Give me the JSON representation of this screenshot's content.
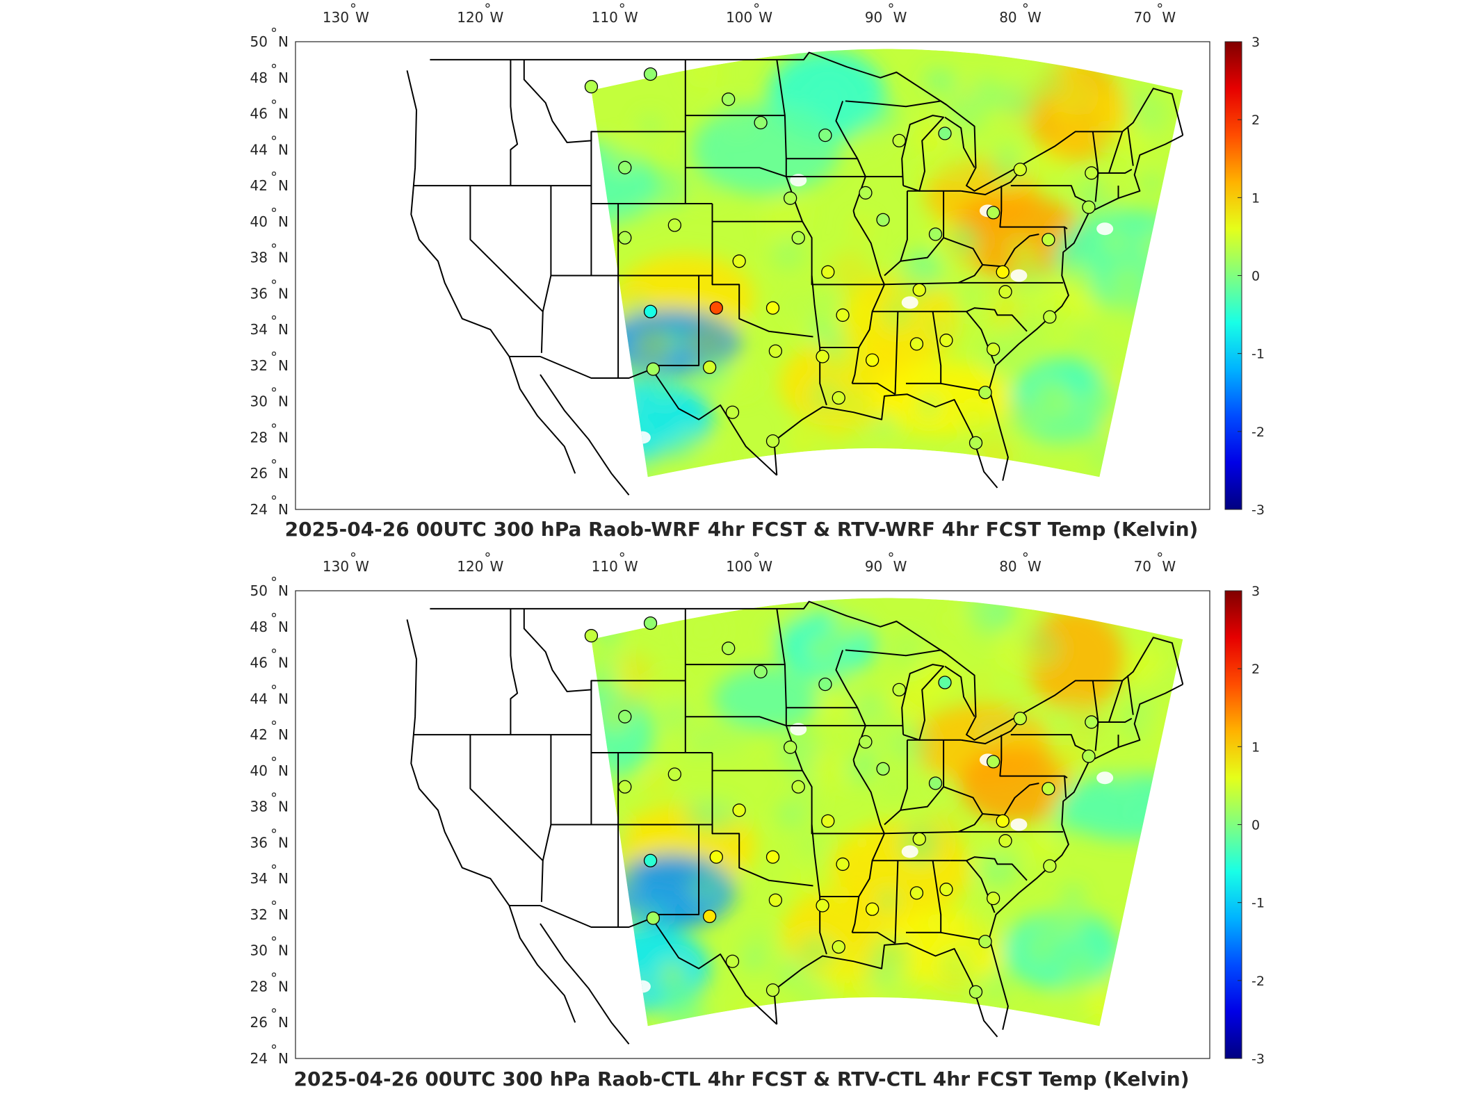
{
  "chart_data": [
    {
      "type": "heatmap",
      "title": "2025-04-26 00UTC 300 hPa Raob-WRF 4hr FCST & RTV-WRF 4hr FCST Temp (Kelvin)",
      "x_ticks": [
        {
          "deg": "130",
          "hemi": "W",
          "value": -130
        },
        {
          "deg": "120",
          "hemi": "W",
          "value": -120
        },
        {
          "deg": "110",
          "hemi": "W",
          "value": -110
        },
        {
          "deg": "100",
          "hemi": "W",
          "value": -100
        },
        {
          "deg": "90",
          "hemi": "W",
          "value": -90
        },
        {
          "deg": "80",
          "hemi": "W",
          "value": -80
        },
        {
          "deg": "70",
          "hemi": "W",
          "value": -70
        }
      ],
      "y_ticks": [
        {
          "deg": "50",
          "hemi": "N",
          "value": 50
        },
        {
          "deg": "48",
          "hemi": "N",
          "value": 48
        },
        {
          "deg": "46",
          "hemi": "N",
          "value": 46
        },
        {
          "deg": "44",
          "hemi": "N",
          "value": 44
        },
        {
          "deg": "42",
          "hemi": "N",
          "value": 42
        },
        {
          "deg": "40",
          "hemi": "N",
          "value": 40
        },
        {
          "deg": "38",
          "hemi": "N",
          "value": 38
        },
        {
          "deg": "36",
          "hemi": "N",
          "value": 36
        },
        {
          "deg": "34",
          "hemi": "N",
          "value": 34
        },
        {
          "deg": "32",
          "hemi": "N",
          "value": 32
        },
        {
          "deg": "30",
          "hemi": "N",
          "value": 30
        },
        {
          "deg": "28",
          "hemi": "N",
          "value": 28
        },
        {
          "deg": "26",
          "hemi": "N",
          "value": 26
        },
        {
          "deg": "24",
          "hemi": "N",
          "value": 24
        }
      ],
      "colorbar": {
        "range": [
          -3,
          3
        ],
        "ticks": [
          "3",
          "2",
          "1",
          "0",
          "-1",
          "-2",
          "-3"
        ],
        "colormap": "jet"
      },
      "stations": [
        {
          "lon": -111.0,
          "lat": 47.5,
          "value": 0.3
        },
        {
          "lon": -106.6,
          "lat": 48.2,
          "value": 0.1
        },
        {
          "lon": -100.8,
          "lat": 46.8,
          "value": 0.2
        },
        {
          "lon": -98.4,
          "lat": 45.5,
          "value": 0.1
        },
        {
          "lon": -93.6,
          "lat": 44.8,
          "value": 0.0
        },
        {
          "lon": -88.1,
          "lat": 44.5,
          "value": 0.4
        },
        {
          "lon": -84.7,
          "lat": 44.9,
          "value": 0.0
        },
        {
          "lon": -108.5,
          "lat": 43.0,
          "value": 0.1
        },
        {
          "lon": -96.2,
          "lat": 41.3,
          "value": 0.3
        },
        {
          "lon": -90.6,
          "lat": 41.6,
          "value": 0.3
        },
        {
          "lon": -89.3,
          "lat": 40.1,
          "value": 0.2
        },
        {
          "lon": -81.1,
          "lat": 40.5,
          "value": 0.3
        },
        {
          "lon": -85.4,
          "lat": 39.3,
          "value": 0.2
        },
        {
          "lon": -79.1,
          "lat": 42.9,
          "value": 0.5
        },
        {
          "lon": -73.8,
          "lat": 42.7,
          "value": 0.4
        },
        {
          "lon": -74.0,
          "lat": 40.8,
          "value": 0.3
        },
        {
          "lon": -77.0,
          "lat": 39.0,
          "value": 0.4
        },
        {
          "lon": -108.5,
          "lat": 39.1,
          "value": 0.3
        },
        {
          "lon": -104.8,
          "lat": 39.8,
          "value": 0.4
        },
        {
          "lon": -95.6,
          "lat": 39.1,
          "value": 0.3
        },
        {
          "lon": -100.0,
          "lat": 37.8,
          "value": 0.6
        },
        {
          "lon": -93.4,
          "lat": 37.2,
          "value": 0.6
        },
        {
          "lon": -80.4,
          "lat": 37.2,
          "value": 0.8
        },
        {
          "lon": -86.6,
          "lat": 36.2,
          "value": 0.6
        },
        {
          "lon": -80.2,
          "lat": 36.1,
          "value": 0.5
        },
        {
          "lon": -106.6,
          "lat": 35.0,
          "value": -0.6
        },
        {
          "lon": -101.7,
          "lat": 35.2,
          "value": 1.8
        },
        {
          "lon": -97.5,
          "lat": 35.2,
          "value": 0.7
        },
        {
          "lon": -92.3,
          "lat": 34.8,
          "value": 0.6
        },
        {
          "lon": -76.9,
          "lat": 34.7,
          "value": 0.4
        },
        {
          "lon": -97.3,
          "lat": 32.8,
          "value": 0.5
        },
        {
          "lon": -93.8,
          "lat": 32.5,
          "value": 0.6
        },
        {
          "lon": -90.1,
          "lat": 32.3,
          "value": 0.7
        },
        {
          "lon": -86.8,
          "lat": 33.2,
          "value": 0.6
        },
        {
          "lon": -84.6,
          "lat": 33.4,
          "value": 0.6
        },
        {
          "lon": -81.1,
          "lat": 32.9,
          "value": 0.5
        },
        {
          "lon": -106.4,
          "lat": 31.8,
          "value": 0.2
        },
        {
          "lon": -102.2,
          "lat": 31.9,
          "value": 0.5
        },
        {
          "lon": -100.5,
          "lat": 29.4,
          "value": 0.4
        },
        {
          "lon": -97.5,
          "lat": 27.8,
          "value": 0.4
        },
        {
          "lon": -92.6,
          "lat": 30.2,
          "value": 0.5
        },
        {
          "lon": -81.7,
          "lat": 30.5,
          "value": 0.3
        },
        {
          "lon": -82.4,
          "lat": 27.7,
          "value": 0.3
        }
      ]
    },
    {
      "type": "heatmap",
      "title": "2025-04-26 00UTC 300 hPa Raob-CTL 4hr FCST & RTV-CTL 4hr FCST Temp (Kelvin)",
      "x_ticks": [
        {
          "deg": "130",
          "hemi": "W",
          "value": -130
        },
        {
          "deg": "120",
          "hemi": "W",
          "value": -120
        },
        {
          "deg": "110",
          "hemi": "W",
          "value": -110
        },
        {
          "deg": "100",
          "hemi": "W",
          "value": -100
        },
        {
          "deg": "90",
          "hemi": "W",
          "value": -90
        },
        {
          "deg": "80",
          "hemi": "W",
          "value": -80
        },
        {
          "deg": "70",
          "hemi": "W",
          "value": -70
        }
      ],
      "y_ticks": [
        {
          "deg": "50",
          "hemi": "N",
          "value": 50
        },
        {
          "deg": "48",
          "hemi": "N",
          "value": 48
        },
        {
          "deg": "46",
          "hemi": "N",
          "value": 46
        },
        {
          "deg": "44",
          "hemi": "N",
          "value": 44
        },
        {
          "deg": "42",
          "hemi": "N",
          "value": 42
        },
        {
          "deg": "40",
          "hemi": "N",
          "value": 40
        },
        {
          "deg": "38",
          "hemi": "N",
          "value": 38
        },
        {
          "deg": "36",
          "hemi": "N",
          "value": 36
        },
        {
          "deg": "34",
          "hemi": "N",
          "value": 34
        },
        {
          "deg": "32",
          "hemi": "N",
          "value": 32
        },
        {
          "deg": "30",
          "hemi": "N",
          "value": 30
        },
        {
          "deg": "28",
          "hemi": "N",
          "value": 28
        },
        {
          "deg": "26",
          "hemi": "N",
          "value": 26
        },
        {
          "deg": "24",
          "hemi": "N",
          "value": 24
        }
      ],
      "colorbar": {
        "range": [
          -3,
          3
        ],
        "ticks": [
          "3",
          "2",
          "1",
          "0",
          "-1",
          "-2",
          "-3"
        ],
        "colormap": "jet"
      },
      "stations": [
        {
          "lon": -111.0,
          "lat": 47.5,
          "value": 0.4
        },
        {
          "lon": -106.6,
          "lat": 48.2,
          "value": 0.1
        },
        {
          "lon": -100.8,
          "lat": 46.8,
          "value": 0.3
        },
        {
          "lon": -98.4,
          "lat": 45.5,
          "value": 0.1
        },
        {
          "lon": -93.6,
          "lat": 44.8,
          "value": 0.0
        },
        {
          "lon": -88.1,
          "lat": 44.5,
          "value": 0.4
        },
        {
          "lon": -84.7,
          "lat": 44.9,
          "value": -0.2
        },
        {
          "lon": -108.5,
          "lat": 43.0,
          "value": 0.1
        },
        {
          "lon": -96.2,
          "lat": 41.3,
          "value": 0.3
        },
        {
          "lon": -90.6,
          "lat": 41.6,
          "value": 0.3
        },
        {
          "lon": -89.3,
          "lat": 40.1,
          "value": 0.2
        },
        {
          "lon": -81.1,
          "lat": 40.5,
          "value": 0.3
        },
        {
          "lon": -85.4,
          "lat": 39.3,
          "value": 0.1
        },
        {
          "lon": -79.1,
          "lat": 42.9,
          "value": 0.4
        },
        {
          "lon": -73.8,
          "lat": 42.7,
          "value": 0.3
        },
        {
          "lon": -74.0,
          "lat": 40.8,
          "value": 0.3
        },
        {
          "lon": -77.0,
          "lat": 39.0,
          "value": 0.4
        },
        {
          "lon": -108.5,
          "lat": 39.1,
          "value": 0.4
        },
        {
          "lon": -104.8,
          "lat": 39.8,
          "value": 0.4
        },
        {
          "lon": -95.6,
          "lat": 39.1,
          "value": 0.4
        },
        {
          "lon": -100.0,
          "lat": 37.8,
          "value": 0.6
        },
        {
          "lon": -93.4,
          "lat": 37.2,
          "value": 0.6
        },
        {
          "lon": -80.4,
          "lat": 37.2,
          "value": 0.7
        },
        {
          "lon": -86.6,
          "lat": 36.2,
          "value": 0.5
        },
        {
          "lon": -80.2,
          "lat": 36.1,
          "value": 0.5
        },
        {
          "lon": -106.6,
          "lat": 35.0,
          "value": -0.5
        },
        {
          "lon": -101.7,
          "lat": 35.2,
          "value": 0.7
        },
        {
          "lon": -97.5,
          "lat": 35.2,
          "value": 0.7
        },
        {
          "lon": -92.3,
          "lat": 34.8,
          "value": 0.6
        },
        {
          "lon": -76.9,
          "lat": 34.7,
          "value": 0.4
        },
        {
          "lon": -97.3,
          "lat": 32.8,
          "value": 0.6
        },
        {
          "lon": -93.8,
          "lat": 32.5,
          "value": 0.6
        },
        {
          "lon": -90.1,
          "lat": 32.3,
          "value": 0.7
        },
        {
          "lon": -86.8,
          "lat": 33.2,
          "value": 0.6
        },
        {
          "lon": -84.6,
          "lat": 33.4,
          "value": 0.6
        },
        {
          "lon": -81.1,
          "lat": 32.9,
          "value": 0.5
        },
        {
          "lon": -106.4,
          "lat": 31.8,
          "value": 0.2
        },
        {
          "lon": -102.2,
          "lat": 31.9,
          "value": 0.9
        },
        {
          "lon": -100.5,
          "lat": 29.4,
          "value": 0.4
        },
        {
          "lon": -97.5,
          "lat": 27.8,
          "value": 0.4
        },
        {
          "lon": -92.6,
          "lat": 30.2,
          "value": 0.5
        },
        {
          "lon": -81.7,
          "lat": 30.5,
          "value": 0.3
        },
        {
          "lon": -82.4,
          "lat": 27.7,
          "value": 0.3
        }
      ]
    }
  ]
}
